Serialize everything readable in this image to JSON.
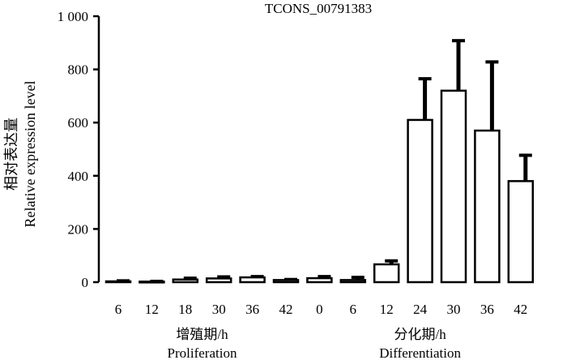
{
  "chart_data": {
    "type": "bar",
    "title": "TCONS_00791383",
    "ylabel_cn": "相对表达量",
    "ylabel_en": "Relative expression level",
    "ylim": [
      0,
      1000
    ],
    "yticks": [
      0,
      200,
      400,
      600,
      800,
      1000
    ],
    "ytick_labels": [
      "0",
      "200",
      "400",
      "600",
      "800",
      "1 000"
    ],
    "grid": false,
    "categories": [
      "6",
      "12",
      "18",
      "30",
      "36",
      "42",
      "0",
      "6",
      "12",
      "24",
      "30",
      "36",
      "42"
    ],
    "values": [
      3,
      2,
      10,
      14,
      18,
      8,
      15,
      8,
      67,
      610,
      720,
      570,
      380
    ],
    "errors": [
      2,
      1,
      5,
      6,
      3,
      2,
      6,
      10,
      13,
      155,
      188,
      258,
      97
    ],
    "groups": [
      {
        "label_cn": "增殖期/h",
        "label_en": "Proliferation",
        "start": 0,
        "end": 5
      },
      {
        "label_cn": "分化期/h",
        "label_en": "Differentiation",
        "start": 6,
        "end": 12
      }
    ],
    "colors": {
      "bar_fill": "#ffffff",
      "bar_stroke": "#000000",
      "error": "#000000"
    }
  }
}
